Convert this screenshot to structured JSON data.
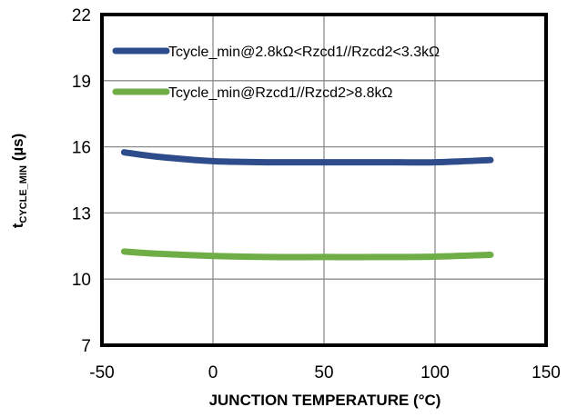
{
  "chart_data": {
    "type": "line",
    "title": "",
    "xlabel": "JUNCTION TEMPERATURE (°C)",
    "ylabel_main": "t",
    "ylabel_sub": "CYCLE_MIN",
    "ylabel_unit": " (µs)",
    "xlim": [
      -50,
      150
    ],
    "ylim": [
      7,
      22
    ],
    "xticks": [
      -50,
      0,
      50,
      100,
      150
    ],
    "yticks": [
      7,
      10,
      13,
      16,
      19,
      22
    ],
    "grid": true,
    "legend_position": "top-left",
    "series": [
      {
        "name": "Tcycle_min@2.8kΩ<Rzcd1//Rzcd2<3.3kΩ",
        "color": "#2E4C8C",
        "x": [
          -40,
          -25,
          0,
          25,
          50,
          75,
          100,
          125
        ],
        "y": [
          15.75,
          15.55,
          15.35,
          15.3,
          15.3,
          15.3,
          15.3,
          15.4
        ]
      },
      {
        "name": "Tcycle_min@Rzcd1//Rzcd2>8.8kΩ",
        "color": "#6FAD47",
        "x": [
          -40,
          -25,
          0,
          25,
          50,
          75,
          100,
          125
        ],
        "y": [
          11.25,
          11.15,
          11.05,
          11.0,
          11.0,
          11.0,
          11.02,
          11.1
        ]
      }
    ]
  }
}
